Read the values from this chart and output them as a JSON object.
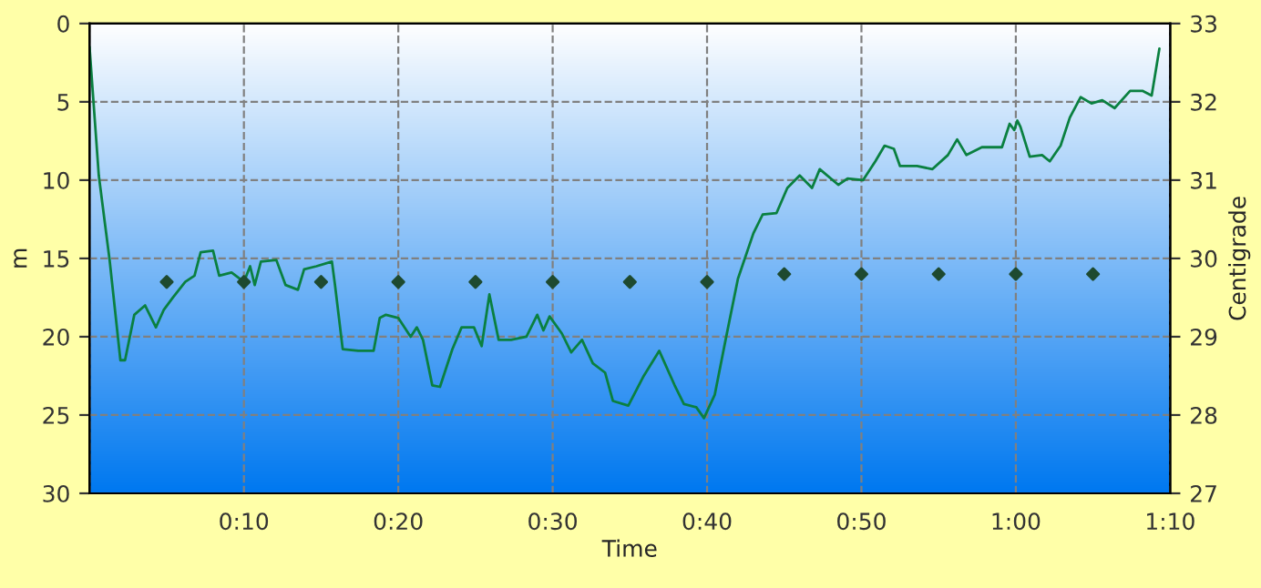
{
  "chart_data": {
    "type": "line",
    "xlabel": "Time",
    "ylabel": "m",
    "y2label": "Centigrade",
    "series": [
      {
        "color": "#0a8040",
        "x": [
          0,
          0.6,
          1.3,
          2.0,
          2.3,
          2.9,
          3.6,
          4.3,
          4.8,
          5.4,
          6.2,
          6.8,
          7.2,
          8.0,
          8.4,
          9.2,
          10.0,
          10.4,
          10.7,
          11.1,
          12.1,
          12.7,
          13.5,
          13.9,
          14.7,
          15.7,
          15.9,
          16.4,
          17.4,
          18.4,
          18.8,
          19.2,
          20.0,
          20.8,
          21.2,
          21.6,
          22.2,
          22.7,
          23.5,
          24.1,
          24.9,
          25.4,
          25.9,
          26.5,
          27.3,
          28.3,
          29.0,
          29.4,
          29.8,
          30.6,
          31.2,
          31.9,
          32.6,
          33.4,
          33.9,
          34.9,
          35.9,
          36.9,
          37.9,
          38.5,
          39.3,
          39.8,
          40.5,
          41.2,
          42.0,
          43.0,
          43.6,
          44.5,
          45.2,
          46.0,
          46.8,
          47.3,
          48.5,
          49.1,
          50.1,
          50.9,
          51.5,
          52.1,
          52.5,
          53.6,
          54.6,
          55.6,
          56.2,
          56.8,
          57.8,
          59.1,
          59.6,
          59.9,
          60.1,
          60.3,
          60.9,
          61.7,
          62.2,
          62.9,
          63.5,
          64.2,
          64.9,
          65.6,
          66.4,
          67.4,
          68.2,
          68.8,
          69.1,
          69.3
        ],
        "values": [
          1.5,
          9.7,
          15.1,
          21.5,
          21.5,
          18.6,
          18.0,
          19.4,
          18.3,
          17.5,
          16.5,
          16.1,
          14.6,
          14.5,
          16.1,
          15.9,
          16.5,
          15.5,
          16.7,
          15.2,
          15.1,
          16.7,
          17.0,
          15.7,
          15.5,
          15.2,
          16.7,
          20.8,
          20.9,
          20.9,
          18.8,
          18.6,
          18.8,
          20.0,
          19.4,
          20.2,
          23.1,
          23.2,
          20.8,
          19.4,
          19.4,
          20.6,
          17.3,
          20.2,
          20.2,
          20.0,
          18.6,
          19.6,
          18.7,
          19.8,
          21.0,
          20.2,
          21.7,
          22.3,
          24.1,
          24.4,
          22.5,
          20.9,
          23.1,
          24.3,
          24.5,
          25.2,
          23.7,
          20.2,
          16.3,
          13.4,
          12.2,
          12.1,
          10.5,
          9.7,
          10.5,
          9.3,
          10.3,
          9.9,
          10.0,
          8.8,
          7.8,
          8.0,
          9.1,
          9.1,
          9.3,
          8.4,
          7.4,
          8.4,
          7.9,
          7.9,
          6.4,
          6.8,
          6.2,
          6.6,
          8.5,
          8.4,
          8.8,
          7.8,
          6.0,
          4.7,
          5.1,
          4.9,
          5.4,
          4.3,
          4.3,
          4.6,
          2.8,
          1.6
        ]
      },
      {
        "type": "scatter",
        "axis": "y2",
        "marker": "diamond",
        "color": "#1e4a30",
        "x": [
          5,
          10,
          15,
          20,
          25,
          30,
          35,
          40,
          45,
          50,
          55,
          60,
          65
        ],
        "values": [
          29.7,
          29.7,
          29.7,
          29.7,
          29.7,
          29.7,
          29.7,
          29.7,
          29.8,
          29.8,
          29.8,
          29.8,
          29.8
        ]
      }
    ],
    "xlim": [
      0,
      70
    ],
    "xticks": [
      {
        "value": 0,
        "label": null
      },
      {
        "value": 10,
        "label": "0:10"
      },
      {
        "value": 20,
        "label": "0:20"
      },
      {
        "value": 30,
        "label": "0:30"
      },
      {
        "value": 40,
        "label": "0:40"
      },
      {
        "value": 50,
        "label": "0:50"
      },
      {
        "value": 60,
        "label": "1:00"
      },
      {
        "value": 70,
        "label": "1:10"
      }
    ],
    "ylim": [
      30,
      0
    ],
    "yticks": [
      0,
      5,
      10,
      15,
      20,
      25,
      30
    ],
    "y2lim": [
      27,
      33
    ],
    "y2ticks": [
      27,
      28,
      29,
      30,
      31,
      32,
      33
    ],
    "grid": true,
    "legend": false
  }
}
